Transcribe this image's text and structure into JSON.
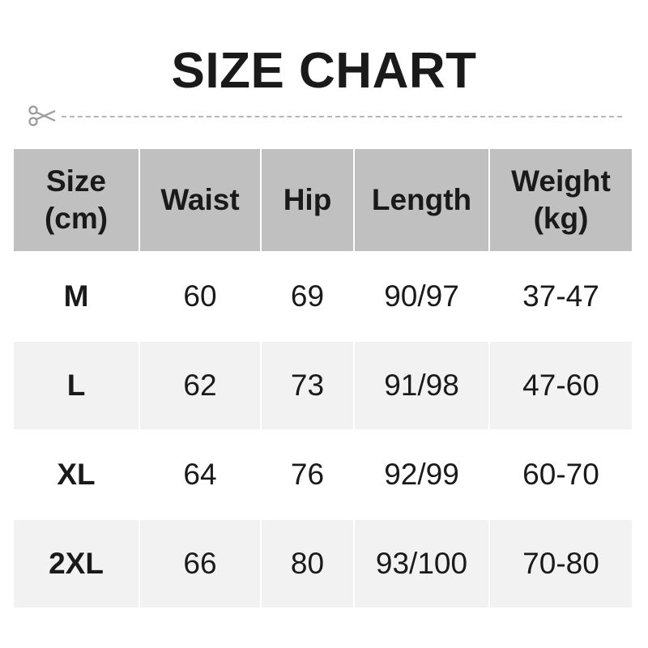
{
  "title": "SIZE CHART",
  "icons": {
    "cut_line": "scissors-icon"
  },
  "colors": {
    "header_bg": "#c0c0c0",
    "alt_row_bg": "#f2f2f2",
    "text": "#1a1a1a"
  },
  "table": {
    "headers": [
      [
        "Size",
        "(cm)"
      ],
      [
        "Waist"
      ],
      [
        "Hip"
      ],
      [
        "Length"
      ],
      [
        "Weight",
        "(kg)"
      ]
    ],
    "rows": [
      [
        "M",
        "60",
        "69",
        "90/97",
        "37-47"
      ],
      [
        "L",
        "62",
        "73",
        "91/98",
        "47-60"
      ],
      [
        "XL",
        "64",
        "76",
        "92/99",
        "60-70"
      ],
      [
        "2XL",
        "66",
        "80",
        "93/100",
        "70-80"
      ]
    ]
  }
}
